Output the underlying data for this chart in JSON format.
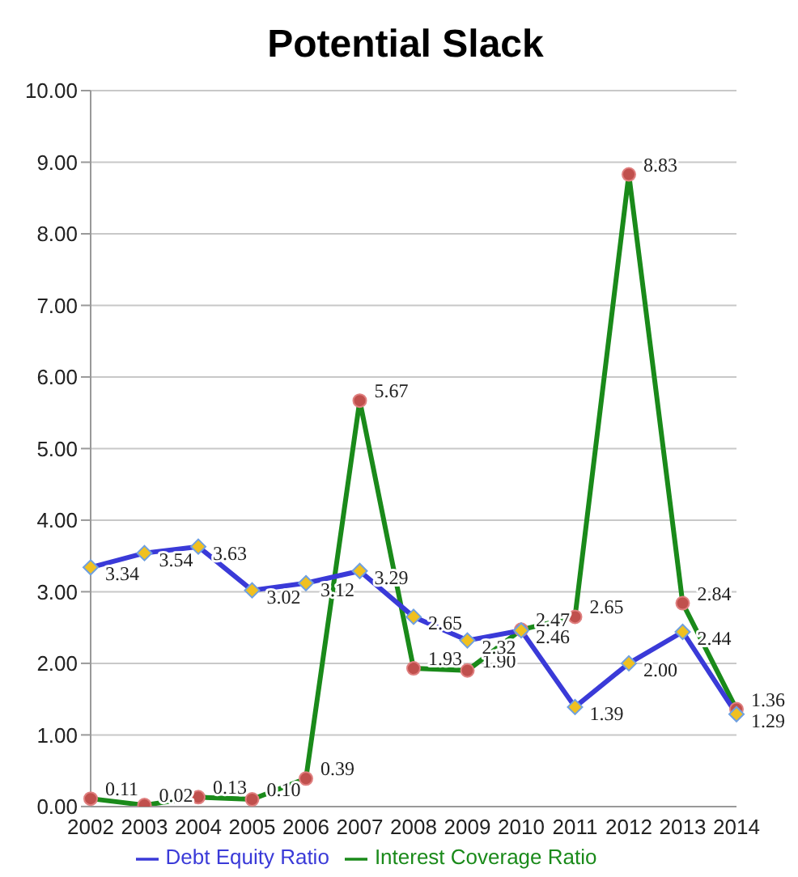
{
  "chart_data": {
    "type": "line",
    "title": "Potential Slack",
    "categories": [
      "2002",
      "2003",
      "2004",
      "2005",
      "2006",
      "2007",
      "2008",
      "2009",
      "2010",
      "2011",
      "2012",
      "2013",
      "2014"
    ],
    "series": [
      {
        "name": "Debt Equity Ratio",
        "color": "#3a3ad8",
        "marker": "diamond",
        "values": [
          3.34,
          3.54,
          3.63,
          3.02,
          3.12,
          3.29,
          2.65,
          2.32,
          2.46,
          1.39,
          2.0,
          2.44,
          1.29
        ],
        "value_labels": [
          "3.34",
          "3.54",
          "3.63",
          "3.02",
          "3.12",
          "3.29",
          "2.65",
          "2.32",
          "2.46",
          "1.39",
          "2.00",
          "2.44",
          "1.29"
        ]
      },
      {
        "name": "Interest Coverage Ratio",
        "color": "#1a8a1a",
        "marker": "circle",
        "values": [
          0.11,
          0.02,
          0.13,
          0.1,
          0.39,
          5.67,
          1.93,
          1.9,
          2.47,
          2.65,
          8.83,
          2.84,
          1.36
        ],
        "value_labels": [
          "0.11",
          "0.02",
          "0.13",
          "0.10",
          "0.39",
          "5.67",
          "1.93",
          "1.90",
          "2.47",
          "2.65",
          "8.83",
          "2.84",
          "1.36"
        ]
      }
    ],
    "ylim": [
      0,
      10
    ],
    "yticks": [
      {
        "value": 0,
        "label": "0.00"
      },
      {
        "value": 1,
        "label": "1.00"
      },
      {
        "value": 2,
        "label": "2.00"
      },
      {
        "value": 3,
        "label": "3.00"
      },
      {
        "value": 4,
        "label": "4.00"
      },
      {
        "value": 5,
        "label": "5.00"
      },
      {
        "value": 6,
        "label": "6.00"
      },
      {
        "value": 7,
        "label": "7.00"
      },
      {
        "value": 8,
        "label": "8.00"
      },
      {
        "value": 9,
        "label": "9.00"
      },
      {
        "value": 10,
        "label": "10.00"
      }
    ],
    "grid": "y",
    "legend": "bottom",
    "line_style": "solid"
  }
}
